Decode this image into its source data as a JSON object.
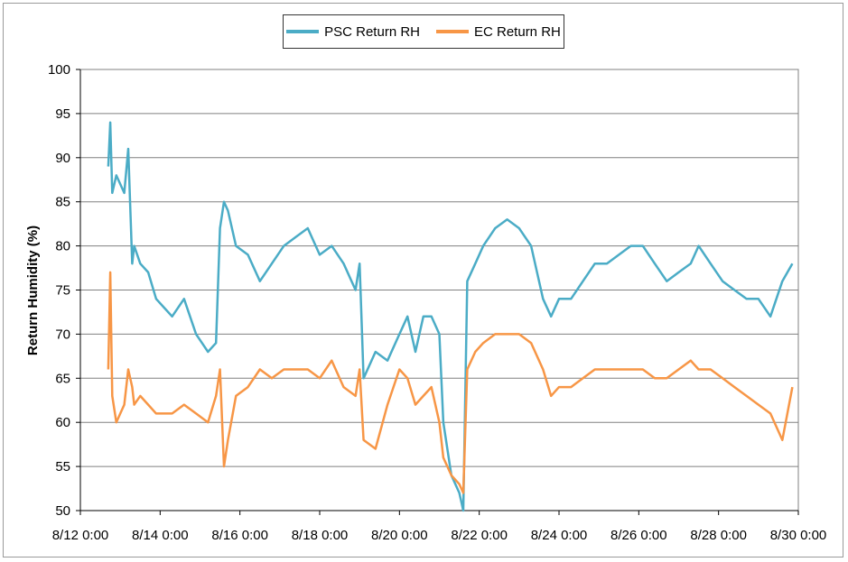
{
  "chart_data": {
    "type": "line",
    "title": "",
    "xlabel": "",
    "ylabel": "Return Humidity (%)",
    "ylim": [
      50,
      100
    ],
    "yticks": [
      50,
      55,
      60,
      65,
      70,
      75,
      80,
      85,
      90,
      95,
      100
    ],
    "xlim_days": [
      12,
      30
    ],
    "xtick_labels": [
      "8/12 0:00",
      "8/14 0:00",
      "8/16 0:00",
      "8/18 0:00",
      "8/20 0:00",
      "8/22 0:00",
      "8/24 0:00",
      "8/26 0:00",
      "8/28 0:00",
      "8/30 0:00"
    ],
    "grid": "horizontal",
    "legend_position": "top-center",
    "x_unit": "day of August",
    "series": [
      {
        "name": "PSC Return RH",
        "color": "#4bacc6",
        "x": [
          12.7,
          12.75,
          12.8,
          12.9,
          13.0,
          13.1,
          13.2,
          13.3,
          13.35,
          13.5,
          13.7,
          13.9,
          14.1,
          14.3,
          14.6,
          14.9,
          15.2,
          15.4,
          15.5,
          15.6,
          15.7,
          15.9,
          16.2,
          16.5,
          16.8,
          17.1,
          17.4,
          17.7,
          18.0,
          18.3,
          18.6,
          18.9,
          19.0,
          19.1,
          19.4,
          19.7,
          20.0,
          20.2,
          20.4,
          20.6,
          20.8,
          21.0,
          21.1,
          21.3,
          21.5,
          21.6,
          21.7,
          21.9,
          22.1,
          22.4,
          22.7,
          23.0,
          23.3,
          23.6,
          23.8,
          24.0,
          24.3,
          24.6,
          24.9,
          25.2,
          25.5,
          25.8,
          26.1,
          26.4,
          26.7,
          27.0,
          27.3,
          27.5,
          27.8,
          28.1,
          28.4,
          28.7,
          29.0,
          29.3,
          29.6,
          29.85
        ],
        "y": [
          89,
          94,
          86,
          88,
          87,
          86,
          91,
          78,
          80,
          78,
          77,
          74,
          73,
          72,
          74,
          70,
          68,
          69,
          82,
          85,
          84,
          80,
          79,
          76,
          78,
          80,
          81,
          82,
          79,
          80,
          78,
          75,
          78,
          65,
          68,
          67,
          70,
          72,
          68,
          72,
          72,
          70,
          60,
          54,
          52,
          50,
          76,
          78,
          80,
          82,
          83,
          82,
          80,
          74,
          72,
          74,
          74,
          76,
          78,
          78,
          79,
          80,
          80,
          78,
          76,
          77,
          78,
          80,
          78,
          76,
          75,
          74,
          74,
          72,
          76,
          78
        ]
      },
      {
        "name": "EC Return RH",
        "color": "#f79646",
        "x": [
          12.7,
          12.75,
          12.8,
          12.9,
          13.0,
          13.1,
          13.2,
          13.3,
          13.35,
          13.5,
          13.7,
          13.9,
          14.1,
          14.3,
          14.6,
          14.9,
          15.2,
          15.4,
          15.5,
          15.6,
          15.7,
          15.9,
          16.2,
          16.5,
          16.8,
          17.1,
          17.4,
          17.7,
          18.0,
          18.3,
          18.6,
          18.9,
          19.0,
          19.1,
          19.4,
          19.7,
          20.0,
          20.2,
          20.4,
          20.6,
          20.8,
          21.0,
          21.1,
          21.3,
          21.5,
          21.6,
          21.7,
          21.9,
          22.1,
          22.4,
          22.7,
          23.0,
          23.3,
          23.6,
          23.8,
          24.0,
          24.3,
          24.6,
          24.9,
          25.2,
          25.5,
          25.8,
          26.1,
          26.4,
          26.7,
          27.0,
          27.3,
          27.5,
          27.8,
          28.1,
          28.4,
          28.7,
          29.0,
          29.3,
          29.6,
          29.85
        ],
        "y": [
          66,
          77,
          63,
          60,
          61,
          62,
          66,
          64,
          62,
          63,
          62,
          61,
          61,
          61,
          62,
          61,
          60,
          63,
          66,
          55,
          58,
          63,
          64,
          66,
          65,
          66,
          66,
          66,
          65,
          67,
          64,
          63,
          66,
          58,
          57,
          62,
          66,
          65,
          62,
          63,
          64,
          60,
          56,
          54,
          53,
          52,
          66,
          68,
          69,
          70,
          70,
          70,
          69,
          66,
          63,
          64,
          64,
          65,
          66,
          66,
          66,
          66,
          66,
          65,
          65,
          66,
          67,
          66,
          66,
          65,
          64,
          63,
          62,
          61,
          58,
          64
        ]
      }
    ]
  }
}
